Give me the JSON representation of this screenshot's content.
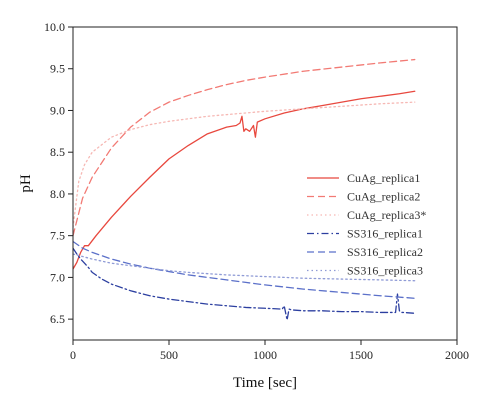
{
  "chart_data": {
    "type": "line",
    "xlabel": "Time [sec]",
    "ylabel": "pH",
    "xlim": [
      0,
      2000
    ],
    "ylim": [
      6.25,
      10.0
    ],
    "xticks": [
      0,
      500,
      1000,
      1500,
      2000
    ],
    "yticks": [
      6.5,
      7.0,
      7.5,
      8.0,
      8.5,
      9.0,
      9.5,
      10.0
    ],
    "xtick_labels": [
      "0",
      "500",
      "1000",
      "1500",
      "2000"
    ],
    "ytick_labels": [
      "6.5",
      "7.0",
      "7.5",
      "8.0",
      "8.5",
      "9.0",
      "9.5",
      "10.0"
    ],
    "grid": false,
    "legend_position": "right",
    "series": [
      {
        "name": "CuAg_replica1",
        "color": "#e8483e",
        "style": "solid",
        "x": [
          0,
          20,
          40,
          60,
          80,
          120,
          200,
          300,
          400,
          500,
          600,
          700,
          800,
          850,
          870,
          880,
          890,
          900,
          920,
          940,
          950,
          960,
          1000,
          1100,
          1200,
          1300,
          1400,
          1500,
          1600,
          1700,
          1780
        ],
        "y": [
          7.1,
          7.18,
          7.3,
          7.38,
          7.38,
          7.5,
          7.72,
          7.97,
          8.2,
          8.42,
          8.58,
          8.72,
          8.8,
          8.82,
          8.85,
          8.93,
          8.75,
          8.78,
          8.75,
          8.82,
          8.68,
          8.86,
          8.9,
          8.97,
          9.02,
          9.06,
          9.1,
          9.14,
          9.17,
          9.2,
          9.23
        ]
      },
      {
        "name": "CuAg_replica2",
        "color": "#f27a74",
        "style": "dashed",
        "x": [
          0,
          50,
          100,
          200,
          300,
          400,
          500,
          600,
          700,
          800,
          900,
          1000,
          1200,
          1400,
          1600,
          1780
        ],
        "y": [
          7.5,
          7.95,
          8.2,
          8.55,
          8.8,
          8.98,
          9.1,
          9.18,
          9.25,
          9.31,
          9.36,
          9.4,
          9.47,
          9.52,
          9.57,
          9.61
        ]
      },
      {
        "name": "CuAg_replica3*",
        "color": "#f6b8b4",
        "style": "dotted",
        "x": [
          0,
          30,
          60,
          100,
          200,
          300,
          400,
          500,
          600,
          700,
          800,
          900,
          1000,
          1200,
          1400,
          1600,
          1780
        ],
        "y": [
          7.6,
          8.15,
          8.35,
          8.5,
          8.68,
          8.77,
          8.83,
          8.87,
          8.9,
          8.93,
          8.95,
          8.97,
          8.99,
          9.02,
          9.05,
          9.08,
          9.1
        ]
      },
      {
        "name": "SS316_replica1",
        "color": "#2c3fa0",
        "style": "dashdot",
        "x": [
          0,
          20,
          40,
          60,
          80,
          100,
          150,
          200,
          300,
          400,
          500,
          600,
          700,
          800,
          900,
          1000,
          1090,
          1100,
          1115,
          1125,
          1140,
          1200,
          1300,
          1400,
          1500,
          1600,
          1680,
          1690,
          1700,
          1710,
          1720,
          1780
        ],
        "y": [
          7.35,
          7.28,
          7.22,
          7.17,
          7.12,
          7.06,
          6.98,
          6.92,
          6.84,
          6.78,
          6.74,
          6.71,
          6.68,
          6.66,
          6.64,
          6.63,
          6.62,
          6.66,
          6.49,
          6.62,
          6.61,
          6.6,
          6.6,
          6.59,
          6.59,
          6.58,
          6.58,
          6.8,
          6.6,
          6.58,
          6.58,
          6.57
        ]
      },
      {
        "name": "SS316_replica2",
        "color": "#5b70c9",
        "style": "dashed",
        "x": [
          0,
          50,
          100,
          200,
          300,
          400,
          500,
          600,
          700,
          800,
          900,
          1000,
          1200,
          1400,
          1600,
          1780
        ],
        "y": [
          7.43,
          7.35,
          7.3,
          7.22,
          7.16,
          7.11,
          7.07,
          7.03,
          7.0,
          6.97,
          6.94,
          6.91,
          6.86,
          6.82,
          6.78,
          6.75
        ]
      },
      {
        "name": "SS316_replica3",
        "color": "#8f9bd6",
        "style": "dotted",
        "x": [
          0,
          50,
          100,
          200,
          300,
          400,
          500,
          600,
          800,
          1000,
          1200,
          1400,
          1600,
          1780
        ],
        "y": [
          7.28,
          7.25,
          7.22,
          7.17,
          7.14,
          7.11,
          7.08,
          7.06,
          7.03,
          7.01,
          6.99,
          6.98,
          6.97,
          6.96
        ]
      }
    ]
  }
}
